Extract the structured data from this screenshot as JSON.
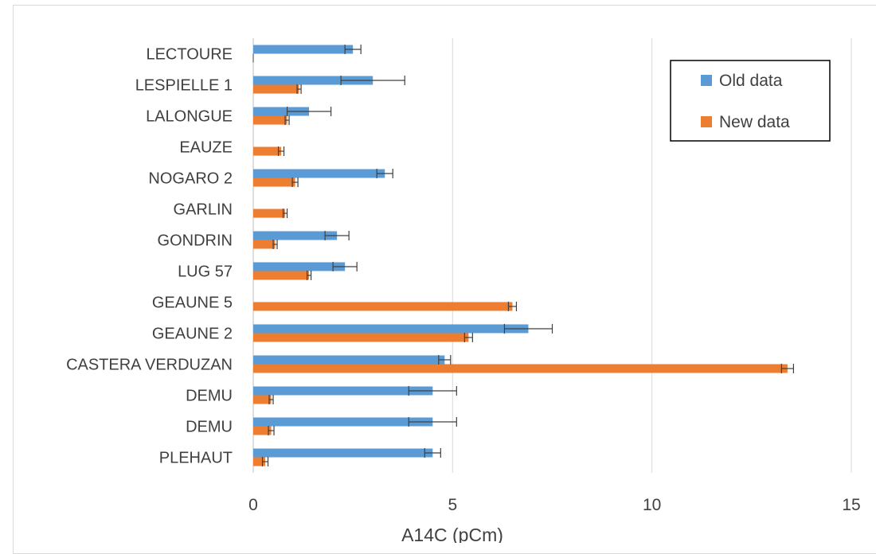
{
  "chart_data": {
    "type": "bar",
    "orientation": "horizontal",
    "categories": [
      "LECTOURE",
      "LESPIELLE 1",
      "LALONGUE",
      "EAUZE",
      "NOGARO 2",
      "GARLIN",
      "GONDRIN",
      "LUG 57",
      "GEAUNE 5",
      "GEAUNE 2",
      "CASTERA VERDUZAN",
      "DEMU",
      "DEMU",
      "PLEHAUT"
    ],
    "series": [
      {
        "name": "Old data",
        "color": "#5B9BD5",
        "values": [
          2.5,
          3.0,
          1.4,
          null,
          3.3,
          null,
          2.1,
          2.3,
          null,
          6.9,
          4.8,
          4.5,
          4.5,
          4.5
        ],
        "error": [
          0.2,
          0.8,
          0.55,
          null,
          0.2,
          null,
          0.3,
          0.3,
          null,
          0.6,
          0.15,
          0.6,
          0.6,
          0.2
        ]
      },
      {
        "name": "New data",
        "color": "#ED7D31",
        "values": [
          0,
          1.15,
          0.85,
          0.7,
          1.05,
          0.8,
          0.55,
          1.4,
          6.5,
          5.4,
          13.4,
          0.45,
          0.45,
          0.3
        ],
        "error": [
          0,
          0.05,
          0.05,
          0.07,
          0.07,
          0.05,
          0.05,
          0.05,
          0.1,
          0.1,
          0.15,
          0.05,
          0.07,
          0.07
        ]
      }
    ],
    "xlabel": "A14C (pCm)",
    "ylabel": "",
    "xlim": [
      0,
      15
    ],
    "xticks": [
      "0",
      "5",
      "10",
      "15"
    ],
    "grid": true,
    "legend_position": "top-right"
  }
}
